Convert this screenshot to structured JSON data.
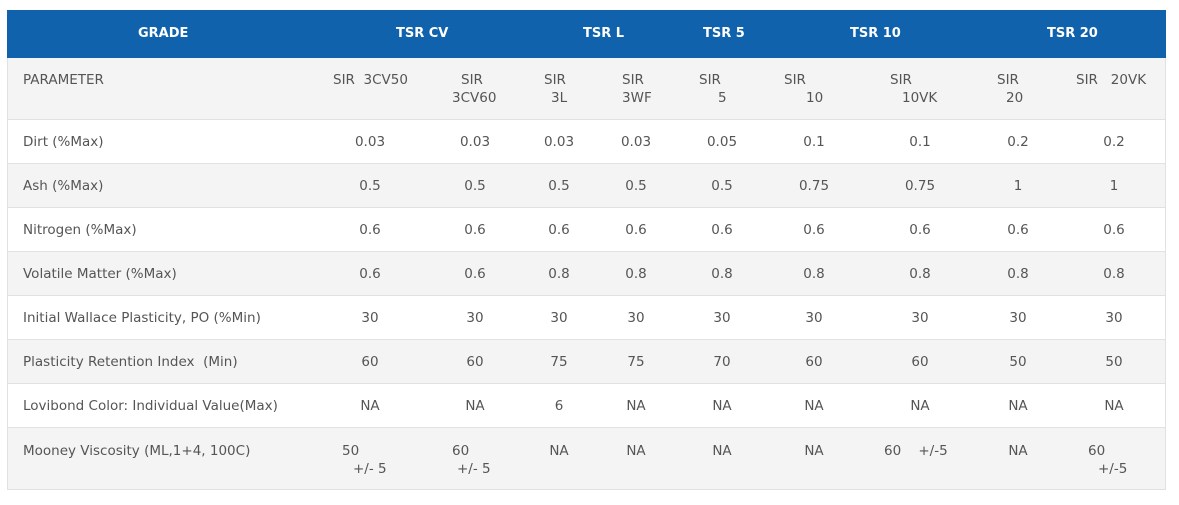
{
  "header": {
    "grade": "GRADE",
    "tsr_cv": "TSR CV",
    "tsr_l": "TSR L",
    "tsr_5": "TSR 5",
    "tsr_10": "TSR 10",
    "tsr_20": "TSR 20"
  },
  "parameter_row": {
    "label": "PARAMETER",
    "c1": "SIR  3CV50",
    "c2a": "SIR",
    "c2b": "3CV60",
    "c3a": "SIR",
    "c3b": "3L",
    "c4a": "SIR",
    "c4b": "3WF",
    "c5a": "SIR",
    "c5b": "5",
    "c6a": "SIR",
    "c6b": "10",
    "c7a": "SIR",
    "c7b": "10VK",
    "c8a": "SIR",
    "c8b": "20",
    "c9": "SIR   20VK"
  },
  "rows": [
    {
      "label": "Dirt (%Max)",
      "v": [
        "0.03",
        "0.03",
        "0.03",
        "0.03",
        "0.05",
        "0.1",
        "0.1",
        "0.2",
        "0.2"
      ]
    },
    {
      "label": "Ash (%Max)",
      "v": [
        "0.5",
        "0.5",
        "0.5",
        "0.5",
        "0.5",
        "0.75",
        "0.75",
        "1",
        "1"
      ]
    },
    {
      "label": "Nitrogen (%Max)",
      "v": [
        "0.6",
        "0.6",
        "0.6",
        "0.6",
        "0.6",
        "0.6",
        "0.6",
        "0.6",
        "0.6"
      ]
    },
    {
      "label": "Volatile Matter (%Max)",
      "v": [
        "0.6",
        "0.6",
        "0.8",
        "0.8",
        "0.8",
        "0.8",
        "0.8",
        "0.8",
        "0.8"
      ]
    },
    {
      "label": "Initial Wallace Plasticity, PO (%Min)",
      "v": [
        "30",
        "30",
        "30",
        "30",
        "30",
        "30",
        "30",
        "30",
        "30"
      ]
    },
    {
      "label": "Plasticity Retention Index  (Min)",
      "v": [
        "60",
        "60",
        "75",
        "75",
        "70",
        "60",
        "60",
        "50",
        "50"
      ]
    },
    {
      "label": "Lovibond Color: Individual Value(Max)",
      "v": [
        "NA",
        "NA",
        "6",
        "NA",
        "NA",
        "NA",
        "NA",
        "NA",
        "NA"
      ]
    }
  ],
  "mooney": {
    "label": "Mooney Viscosity (ML,1+4, 100C)",
    "c1a": "50",
    "c1b": "+/- 5",
    "c2a": "60",
    "c2b": "+/- 5",
    "c3": "NA",
    "c4": "NA",
    "c5": "NA",
    "c6": "NA",
    "c7": "60    +/-5",
    "c8": "NA",
    "c9a": "60",
    "c9b": "+/-5"
  }
}
